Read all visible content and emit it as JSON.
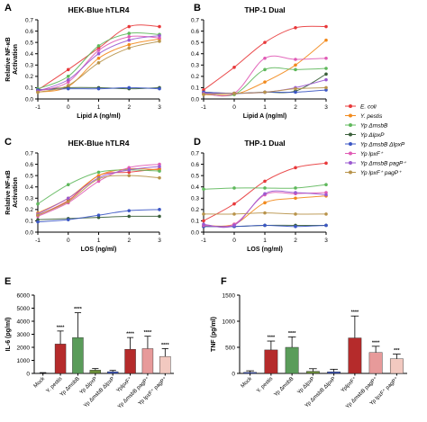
{
  "legend": {
    "entries": [
      {
        "label": "E. coli",
        "color": "#e8383a"
      },
      {
        "label": "Y. pestis",
        "color": "#f28a1c"
      },
      {
        "label": "Yp ΔmsbB",
        "color": "#5fb85c"
      },
      {
        "label": "Yp ΔlpxP",
        "color": "#3a5f3a"
      },
      {
        "label": "Yp ΔmsbB ΔlpxP",
        "color": "#3b56c4"
      },
      {
        "label": "Yp lpxF⁺",
        "color": "#e05ab5"
      },
      {
        "label": "Yp ΔmsbB pagP⁺",
        "color": "#9b59d0"
      },
      {
        "label": "Yp lpxF⁺ pagP⁺",
        "color": "#b8934a"
      }
    ]
  },
  "chart_data": [
    {
      "panel": "A",
      "type": "line",
      "title": "HEK-Blue hTLR4",
      "xlabel": "Lipid A (ng/ml)",
      "ylabel": "Relative NF-κB\nActivation",
      "xlim": [
        -1,
        3
      ],
      "ylim": [
        0,
        0.7
      ],
      "xticks": [
        -1,
        0,
        1,
        2,
        3
      ],
      "yticks": [
        0,
        0.1,
        0.2,
        0.3,
        0.4,
        0.5,
        0.6,
        0.7
      ],
      "ytick_labels": [
        "0.0",
        "0.1",
        "0.2",
        "0.3",
        "0.4",
        "0.5",
        "0.6",
        "0.7"
      ],
      "x": [
        -1,
        0,
        1,
        2,
        3
      ],
      "series": [
        {
          "name": "E. coli",
          "values": [
            0.08,
            0.26,
            0.45,
            0.64,
            0.64
          ]
        },
        {
          "name": "Y. pestis",
          "values": [
            0.06,
            0.11,
            0.36,
            0.48,
            0.53
          ]
        },
        {
          "name": "Yp ΔmsbB",
          "values": [
            0.09,
            0.2,
            0.47,
            0.58,
            0.57
          ]
        },
        {
          "name": "Yp ΔlpxP",
          "values": [
            0.08,
            0.1,
            0.1,
            0.09,
            0.1
          ]
        },
        {
          "name": "Yp ΔmsbB ΔlpxP",
          "values": [
            0.08,
            0.09,
            0.09,
            0.1,
            0.09
          ]
        },
        {
          "name": "Yp lpxF⁺",
          "values": [
            0.07,
            0.15,
            0.43,
            0.55,
            0.54
          ]
        },
        {
          "name": "Yp ΔmsbB pagP⁺",
          "values": [
            0.07,
            0.17,
            0.4,
            0.52,
            0.56
          ]
        },
        {
          "name": "Yp lpxF⁺ pagP⁺",
          "values": [
            0.06,
            0.12,
            0.32,
            0.45,
            0.51
          ]
        }
      ]
    },
    {
      "panel": "B",
      "type": "line",
      "title": "THP-1 Dual",
      "xlabel": "Lipid A (ng/ml)",
      "ylabel": "",
      "xlim": [
        -1,
        3
      ],
      "ylim": [
        0,
        0.7
      ],
      "xticks": [
        -1,
        0,
        1,
        2,
        3
      ],
      "yticks": [
        0,
        0.1,
        0.2,
        0.3,
        0.4,
        0.5,
        0.6,
        0.7
      ],
      "ytick_labels": [
        "0.0",
        "0.1",
        "0.2",
        "0.3",
        "0.4",
        "0.5",
        "0.6",
        "0.7"
      ],
      "x": [
        -1,
        0,
        1,
        2,
        3
      ],
      "series": [
        {
          "name": "E. coli",
          "values": [
            0.08,
            0.28,
            0.5,
            0.63,
            0.64
          ]
        },
        {
          "name": "Y. pestis",
          "values": [
            0.04,
            0.04,
            0.15,
            0.3,
            0.52
          ]
        },
        {
          "name": "Yp ΔmsbB",
          "values": [
            0.05,
            0.04,
            0.26,
            0.26,
            0.27
          ]
        },
        {
          "name": "Yp ΔlpxP",
          "values": [
            0.06,
            0.05,
            0.06,
            0.07,
            0.22
          ]
        },
        {
          "name": "Yp ΔmsbB ΔlpxP",
          "values": [
            0.06,
            0.05,
            0.06,
            0.06,
            0.08
          ]
        },
        {
          "name": "Yp lpxF⁺",
          "values": [
            0.05,
            0.05,
            0.36,
            0.35,
            0.36
          ]
        },
        {
          "name": "Yp ΔmsbB pagP⁺",
          "values": [
            0.05,
            0.05,
            0.06,
            0.1,
            0.17
          ]
        },
        {
          "name": "Yp lpxF⁺ pagP⁺",
          "values": [
            0.04,
            0.05,
            0.06,
            0.09,
            0.1
          ]
        }
      ]
    },
    {
      "panel": "C",
      "type": "line",
      "title": "HEK-Blue hTLR4",
      "xlabel": "LOS (ng/ml)",
      "ylabel": "Relative NF-κB\nActivation",
      "xlim": [
        -1,
        3
      ],
      "ylim": [
        0,
        0.7
      ],
      "xticks": [
        -1,
        0,
        1,
        2,
        3
      ],
      "yticks": [
        0,
        0.1,
        0.2,
        0.3,
        0.4,
        0.5,
        0.6,
        0.7
      ],
      "ytick_labels": [
        "0.0",
        "0.1",
        "0.2",
        "0.3",
        "0.4",
        "0.5",
        "0.6",
        "0.7"
      ],
      "x": [
        -1,
        0,
        1,
        2,
        3
      ],
      "series": [
        {
          "name": "E. coli",
          "values": [
            0.15,
            0.28,
            0.5,
            0.53,
            0.56
          ]
        },
        {
          "name": "Y. pestis",
          "values": [
            0.17,
            0.3,
            0.5,
            0.56,
            0.55
          ]
        },
        {
          "name": "Yp ΔmsbB",
          "values": [
            0.25,
            0.42,
            0.53,
            0.55,
            0.54
          ]
        },
        {
          "name": "Yp ΔlpxP",
          "values": [
            0.11,
            0.12,
            0.13,
            0.14,
            0.14
          ]
        },
        {
          "name": "Yp ΔmsbB ΔlpxP",
          "values": [
            0.09,
            0.11,
            0.15,
            0.19,
            0.2
          ]
        },
        {
          "name": "Yp lpxF⁺",
          "values": [
            0.14,
            0.26,
            0.45,
            0.57,
            0.6
          ]
        },
        {
          "name": "Yp ΔmsbB pagP⁺",
          "values": [
            0.16,
            0.3,
            0.48,
            0.55,
            0.58
          ]
        },
        {
          "name": "Yp lpxF⁺ pagP⁺",
          "values": [
            0.15,
            0.27,
            0.47,
            0.5,
            0.48
          ]
        }
      ]
    },
    {
      "panel": "D",
      "type": "line",
      "title": "THP-1 Dual",
      "xlabel": "LOS (ng/ml)",
      "ylabel": "",
      "xlim": [
        -1,
        3
      ],
      "ylim": [
        0,
        0.7
      ],
      "xticks": [
        -1,
        0,
        1,
        2,
        3
      ],
      "yticks": [
        0,
        0.1,
        0.2,
        0.3,
        0.4,
        0.5,
        0.6,
        0.7
      ],
      "ytick_labels": [
        "0.0",
        "0.1",
        "0.2",
        "0.3",
        "0.4",
        "0.5",
        "0.6",
        "0.7"
      ],
      "x": [
        -1,
        0,
        1,
        2,
        3
      ],
      "series": [
        {
          "name": "E. coli",
          "values": [
            0.1,
            0.25,
            0.45,
            0.57,
            0.61
          ]
        },
        {
          "name": "Y. pestis",
          "values": [
            0.06,
            0.07,
            0.26,
            0.3,
            0.32
          ]
        },
        {
          "name": "Yp ΔmsbB",
          "values": [
            0.38,
            0.39,
            0.39,
            0.39,
            0.42
          ]
        },
        {
          "name": "Yp ΔlpxP",
          "values": [
            0.05,
            0.05,
            0.06,
            0.06,
            0.06
          ]
        },
        {
          "name": "Yp ΔmsbB ΔlpxP",
          "values": [
            0.05,
            0.05,
            0.06,
            0.05,
            0.06
          ]
        },
        {
          "name": "Yp lpxF⁺",
          "values": [
            0.06,
            0.07,
            0.33,
            0.34,
            0.35
          ]
        },
        {
          "name": "Yp ΔmsbB pagP⁺",
          "values": [
            0.07,
            0.06,
            0.34,
            0.35,
            0.33
          ]
        },
        {
          "name": "Yp lpxF⁺ pagP⁺",
          "values": [
            0.16,
            0.16,
            0.17,
            0.16,
            0.16
          ]
        }
      ]
    },
    {
      "panel": "E",
      "type": "bar",
      "title": "",
      "xlabel": "",
      "ylabel": "IL-6 (pg/ml)",
      "ylim": [
        0,
        6000
      ],
      "yticks": [
        0,
        1000,
        2000,
        3000,
        4000,
        5000,
        6000
      ],
      "ytick_labels": [
        "0",
        "1000",
        "2000",
        "3000",
        "4000",
        "5000",
        "6000"
      ],
      "categories": [
        "Mock",
        "Y. pestis",
        "Yp ΔmsbB",
        "Yp ΔlpxP",
        "Yp ΔmsbB ΔlpxP",
        "YplpxF⁺",
        "Yp ΔmsbB pagP⁺",
        "Yp lpxF⁺ pagP⁺"
      ],
      "values": [
        30,
        2250,
        2750,
        250,
        130,
        1850,
        1900,
        1300
      ],
      "errors": [
        30,
        1000,
        1900,
        120,
        100,
        900,
        950,
        600
      ],
      "significance": [
        "",
        "****",
        "****",
        "",
        "",
        "****",
        "****",
        "****"
      ],
      "colors": [
        "#3b56c4",
        "#b52b2b",
        "#5a9c5a",
        "#6b8e3a",
        "#3b56c4",
        "#b52b2b",
        "#e79a9a",
        "#f2c9c0"
      ]
    },
    {
      "panel": "F",
      "type": "bar",
      "title": "",
      "xlabel": "",
      "ylabel": "TNF (pg/ml)",
      "ylim": [
        0,
        1500
      ],
      "yticks": [
        0,
        500,
        1000,
        1500
      ],
      "ytick_labels": [
        "0",
        "500",
        "1000",
        "1500"
      ],
      "categories": [
        "Mock",
        "Y. pestis",
        "Yp ΔmsbB",
        "Yp ΔlpxP",
        "Yp ΔmsbB ΔlpxP",
        "YplpxF⁺",
        "Yp ΔmsbB pagP⁺",
        "Yp lpxF⁺ pagP⁺"
      ],
      "values": [
        20,
        450,
        500,
        40,
        30,
        680,
        400,
        280
      ],
      "errors": [
        30,
        170,
        200,
        50,
        50,
        420,
        120,
        90
      ],
      "significance": [
        "",
        "****",
        "****",
        "",
        "",
        "****",
        "****",
        "***"
      ],
      "colors": [
        "#3b56c4",
        "#b52b2b",
        "#5a9c5a",
        "#6b8e3a",
        "#3b56c4",
        "#b52b2b",
        "#e79a9a",
        "#f2c9c0"
      ]
    }
  ]
}
